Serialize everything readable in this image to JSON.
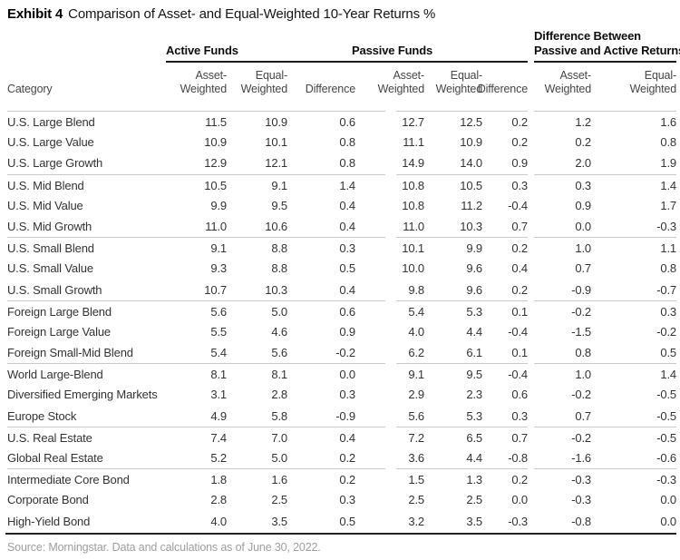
{
  "exhibit": {
    "label": "Exhibit 4",
    "title": "Comparison of Asset- and Equal-Weighted 10-Year Returns %"
  },
  "table": {
    "category_header": "Category",
    "group_headers": {
      "active": "Active Funds",
      "passive": "Passive Funds",
      "difference_line1": "Difference Between",
      "difference_line2": "Passive and Active Returns"
    },
    "column_labels": {
      "asset_line1": "Asset-",
      "asset_line2": "Weighted",
      "equal_line1": "Equal-",
      "equal_line2": "Weighted",
      "difference": "Difference"
    },
    "rows": [
      {
        "category": "U.S. Large Blend",
        "values": [
          "11.5",
          "10.9",
          "0.6",
          "12.7",
          "12.5",
          "0.2",
          "1.2",
          "1.6"
        ],
        "group_start": true
      },
      {
        "category": "U.S. Large Value",
        "values": [
          "10.9",
          "10.1",
          "0.8",
          "11.1",
          "10.9",
          "0.2",
          "0.2",
          "0.8"
        ],
        "group_start": false
      },
      {
        "category": "U.S. Large Growth",
        "values": [
          "12.9",
          "12.1",
          "0.8",
          "14.9",
          "14.0",
          "0.9",
          "2.0",
          "1.9"
        ],
        "group_start": false
      },
      {
        "category": "U.S. Mid Blend",
        "values": [
          "10.5",
          "9.1",
          "1.4",
          "10.8",
          "10.5",
          "0.3",
          "0.3",
          "1.4"
        ],
        "group_start": true
      },
      {
        "category": "U.S. Mid Value",
        "values": [
          "9.9",
          "9.5",
          "0.4",
          "10.8",
          "11.2",
          "-0.4",
          "0.9",
          "1.7"
        ],
        "group_start": false
      },
      {
        "category": "U.S. Mid Growth",
        "values": [
          "11.0",
          "10.6",
          "0.4",
          "11.0",
          "10.3",
          "0.7",
          "0.0",
          "-0.3"
        ],
        "group_start": false
      },
      {
        "category": "U.S. Small Blend",
        "values": [
          "9.1",
          "8.8",
          "0.3",
          "10.1",
          "9.9",
          "0.2",
          "1.0",
          "1.1"
        ],
        "group_start": true
      },
      {
        "category": "U.S. Small Value",
        "values": [
          "9.3",
          "8.8",
          "0.5",
          "10.0",
          "9.6",
          "0.4",
          "0.7",
          "0.8"
        ],
        "group_start": false
      },
      {
        "category": "U.S. Small Growth",
        "values": [
          "10.7",
          "10.3",
          "0.4",
          "9.8",
          "9.6",
          "0.2",
          "-0.9",
          "-0.7"
        ],
        "group_start": false
      },
      {
        "category": "Foreign Large Blend",
        "values": [
          "5.6",
          "5.0",
          "0.6",
          "5.4",
          "5.3",
          "0.1",
          "-0.2",
          "0.3"
        ],
        "group_start": true
      },
      {
        "category": "Foreign Large Value",
        "values": [
          "5.5",
          "4.6",
          "0.9",
          "4.0",
          "4.4",
          "-0.4",
          "-1.5",
          "-0.2"
        ],
        "group_start": false
      },
      {
        "category": "Foreign Small-Mid Blend",
        "values": [
          "5.4",
          "5.6",
          "-0.2",
          "6.2",
          "6.1",
          "0.1",
          "0.8",
          "0.5"
        ],
        "group_start": false
      },
      {
        "category": "World Large-Blend",
        "values": [
          "8.1",
          "8.1",
          "0.0",
          "9.1",
          "9.5",
          "-0.4",
          "1.0",
          "1.4"
        ],
        "group_start": true
      },
      {
        "category": "Diversified Emerging Markets",
        "values": [
          "3.1",
          "2.8",
          "0.3",
          "2.9",
          "2.3",
          "0.6",
          "-0.2",
          "-0.5"
        ],
        "group_start": false
      },
      {
        "category": "Europe Stock",
        "values": [
          "4.9",
          "5.8",
          "-0.9",
          "5.6",
          "5.3",
          "0.3",
          "0.7",
          "-0.5"
        ],
        "group_start": false
      },
      {
        "category": "U.S. Real Estate",
        "values": [
          "7.4",
          "7.0",
          "0.4",
          "7.2",
          "6.5",
          "0.7",
          "-0.2",
          "-0.5"
        ],
        "group_start": true
      },
      {
        "category": "Global Real Estate",
        "values": [
          "5.2",
          "5.0",
          "0.2",
          "3.6",
          "4.4",
          "-0.8",
          "-1.6",
          "-0.6"
        ],
        "group_start": false
      },
      {
        "category": "Intermediate Core Bond",
        "values": [
          "1.8",
          "1.6",
          "0.2",
          "1.5",
          "1.3",
          "0.2",
          "-0.3",
          "-0.3"
        ],
        "group_start": true
      },
      {
        "category": "Corporate Bond",
        "values": [
          "2.8",
          "2.5",
          "0.3",
          "2.5",
          "2.5",
          "0.0",
          "-0.3",
          "0.0"
        ],
        "group_start": false
      },
      {
        "category": "High-Yield Bond",
        "values": [
          "4.0",
          "3.5",
          "0.5",
          "3.2",
          "3.5",
          "-0.3",
          "-0.8",
          "0.0"
        ],
        "group_start": false
      }
    ]
  },
  "footer": {
    "source": "Source: Morningstar. Data and calculations as of June 30, 2022."
  },
  "colors": {
    "rule_dark": "#1a1a1a",
    "rule_light": "#c9c9c9",
    "text_body": "#333333",
    "text_muted": "#9e9e9e"
  }
}
